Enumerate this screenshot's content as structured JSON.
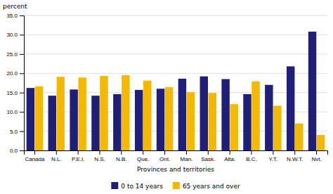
{
  "chart_data": {
    "type": "bar",
    "categories": [
      "Canada",
      "N.L.",
      "P.E.I.",
      "N.S.",
      "N.B.",
      "Que.",
      "Ont.",
      "Man.",
      "Sask.",
      "Alta.",
      "B.C.",
      "Y.T.",
      "N.W.T.",
      "Nvt."
    ],
    "series": [
      {
        "name": "0 to 14 years",
        "color": "#1f1f7a",
        "values": [
          16.2,
          14.2,
          15.8,
          14.2,
          14.6,
          15.7,
          16.0,
          18.6,
          19.2,
          18.5,
          14.6,
          17.0,
          21.8,
          30.8
        ]
      },
      {
        "name": "65 years and over",
        "color": "#f5b800",
        "values": [
          16.6,
          19.1,
          18.9,
          19.3,
          19.5,
          18.1,
          16.4,
          15.1,
          14.9,
          12.0,
          17.9,
          11.6,
          7.0,
          4.0
        ]
      }
    ],
    "xlabel": "Provinces and territories",
    "ylabel": "percent",
    "ylim": [
      0,
      35
    ],
    "yticks": [
      {
        "value": 0,
        "label": "0.0"
      },
      {
        "value": 5,
        "label": "5.0"
      },
      {
        "value": 10,
        "label": "10.0"
      },
      {
        "value": 15,
        "label": "15.0"
      },
      {
        "value": 20,
        "label": "20.0"
      },
      {
        "value": 25,
        "label": "25.0"
      },
      {
        "value": 30,
        "label": "30.0"
      },
      {
        "value": 35,
        "label": "35.0"
      }
    ],
    "grid": true,
    "legend": "bottom"
  }
}
